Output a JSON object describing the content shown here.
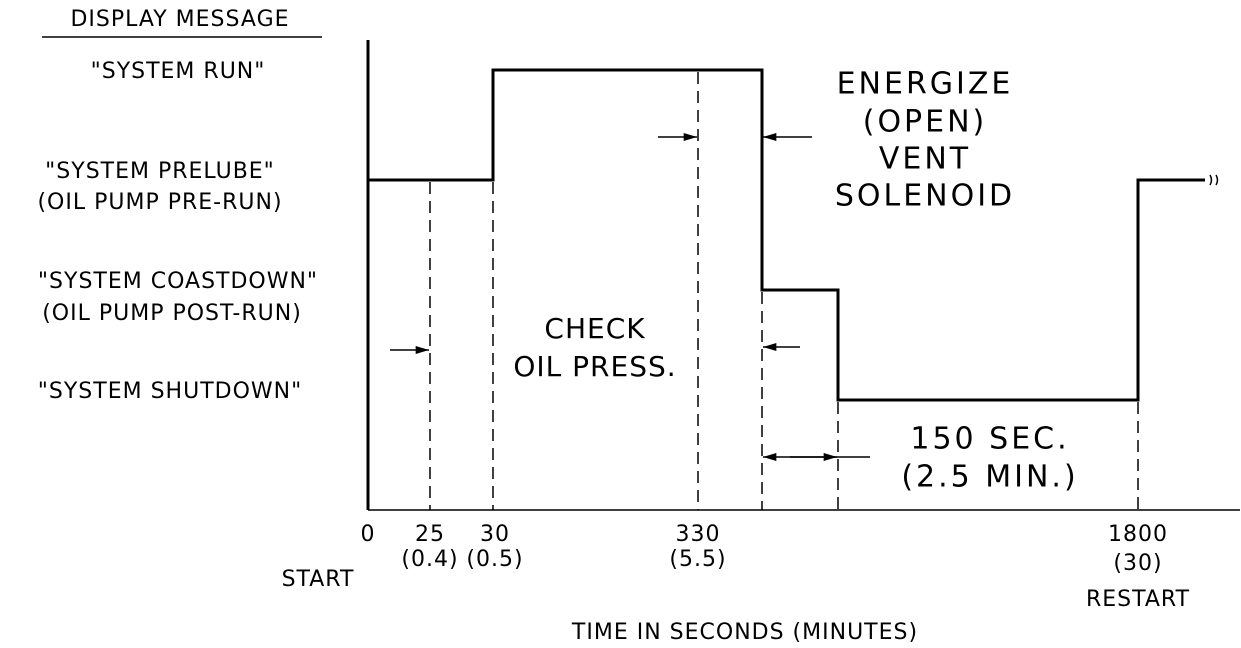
{
  "header": {
    "title": "DISPLAY MESSAGE"
  },
  "states": [
    {
      "label": "\"SYSTEM RUN\""
    },
    {
      "label": "\"SYSTEM PRELUBE\"",
      "note": "(OIL PUMP PRE-RUN)"
    },
    {
      "label": "\"SYSTEM COASTDOWN\"",
      "note": "(OIL PUMP POST-RUN)"
    },
    {
      "label": "\"SYSTEM SHUTDOWN\""
    }
  ],
  "annotations": {
    "vent": [
      "ENERGIZE",
      "(OPEN)",
      "VENT",
      "SOLENOID"
    ],
    "check": [
      "CHECK",
      "OIL PRESS."
    ],
    "delay": [
      "150 SEC.",
      "(2.5 MIN.)"
    ]
  },
  "x_labels": [
    {
      "seconds": "0"
    },
    {
      "seconds": "25",
      "minutes": "(0.4)"
    },
    {
      "seconds": "30",
      "minutes": "(0.5)"
    },
    {
      "seconds": "330",
      "minutes": "(5.5)"
    },
    {
      "seconds": "1800",
      "minutes": "(30)"
    }
  ],
  "start_label": "START",
  "restart_label": "RESTART",
  "axis_title": "TIME IN SECONDS (MINUTES)"
}
